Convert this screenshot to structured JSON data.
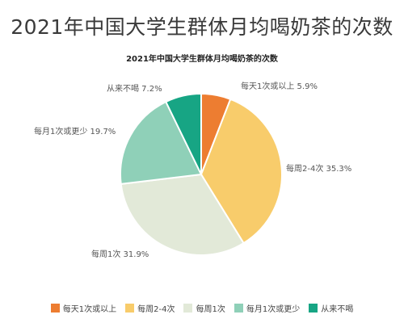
{
  "main_title": "2021年中国大学生群体月均喝奶茶的次数",
  "chart_data": {
    "type": "pie",
    "title": "2021年中国大学生群体月均喝奶茶的次数",
    "slices": [
      {
        "label": "每天1次或以上",
        "value": 5.9,
        "display": "5.9%",
        "color": "#ed7d31"
      },
      {
        "label": "每周2-4次",
        "value": 35.3,
        "display": "35.3%",
        "color": "#f8cc6b"
      },
      {
        "label": "每周1次",
        "value": 31.9,
        "display": "31.9%",
        "color": "#e2e9d8"
      },
      {
        "label": "每月1次或更少",
        "value": 19.7,
        "display": "19.7%",
        "color": "#8fd0b8"
      },
      {
        "label": "从来不喝",
        "value": 7.2,
        "display": "7.2%",
        "color": "#17a584"
      }
    ],
    "legend": [
      "每天1次或以上",
      "每周2-4次",
      "每周1次",
      "每月1次或更少",
      "从来不喝"
    ],
    "legend_position": "bottom"
  }
}
